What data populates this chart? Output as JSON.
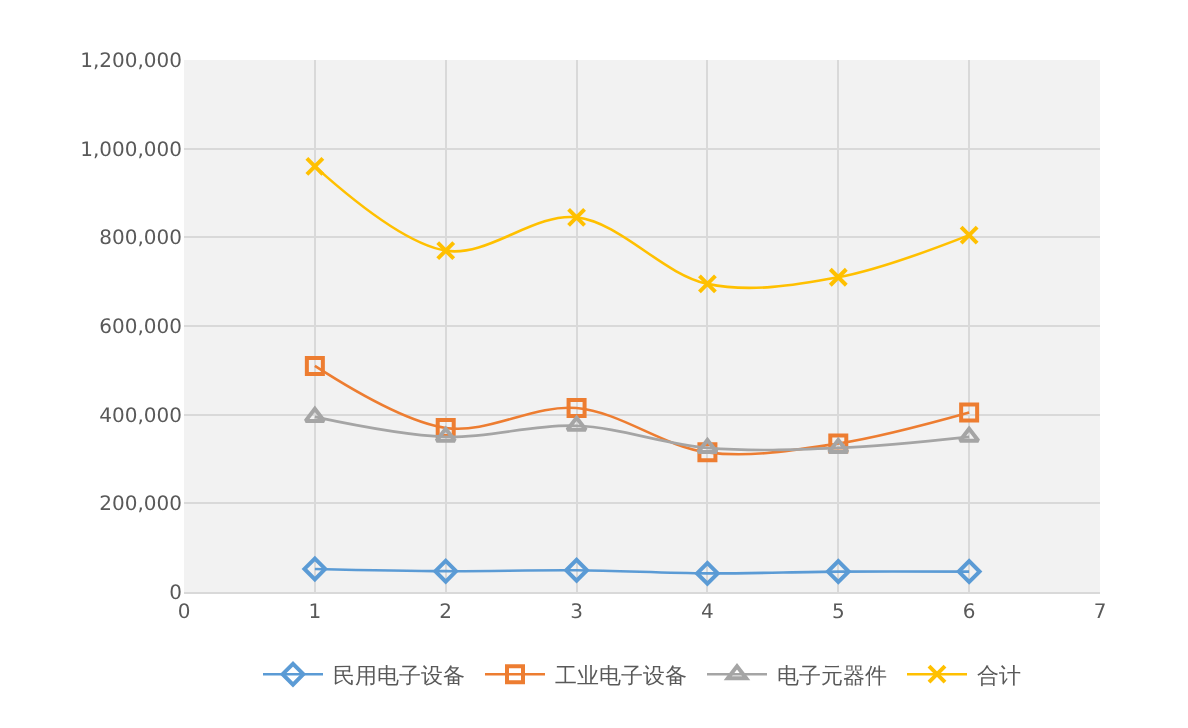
{
  "chart_data": {
    "type": "line",
    "x": [
      1,
      2,
      3,
      4,
      5,
      6
    ],
    "xlim": [
      0,
      7
    ],
    "xticks": [
      0,
      1,
      2,
      3,
      4,
      5,
      6,
      7
    ],
    "ylim": [
      0,
      1200000
    ],
    "yticks": [
      {
        "value": 0,
        "label": "0"
      },
      {
        "value": 200000,
        "label": "200,000"
      },
      {
        "value": 400000,
        "label": "400,000"
      },
      {
        "value": 600000,
        "label": "600,000"
      },
      {
        "value": 800000,
        "label": "800,000"
      },
      {
        "value": 1000000,
        "label": "1,000,000"
      },
      {
        "value": 1200000,
        "label": "1,200,000"
      }
    ],
    "grid": true,
    "legend": "bottom",
    "series": [
      {
        "name": "民用电子设备",
        "color": "#5b9bd5",
        "marker": "diamond",
        "values": [
          52000,
          47000,
          49000,
          42000,
          46000,
          46000
        ]
      },
      {
        "name": "工业电子设备",
        "color": "#ed7d31",
        "marker": "square",
        "values": [
          510000,
          370000,
          415000,
          315000,
          335000,
          405000
        ]
      },
      {
        "name": "电子元器件",
        "color": "#a5a5a5",
        "marker": "triangle",
        "values": [
          395000,
          350000,
          375000,
          325000,
          325000,
          350000
        ]
      },
      {
        "name": "合计",
        "color": "#ffc000",
        "marker": "cross",
        "values": [
          960000,
          770000,
          845000,
          695000,
          710000,
          805000
        ]
      }
    ]
  }
}
